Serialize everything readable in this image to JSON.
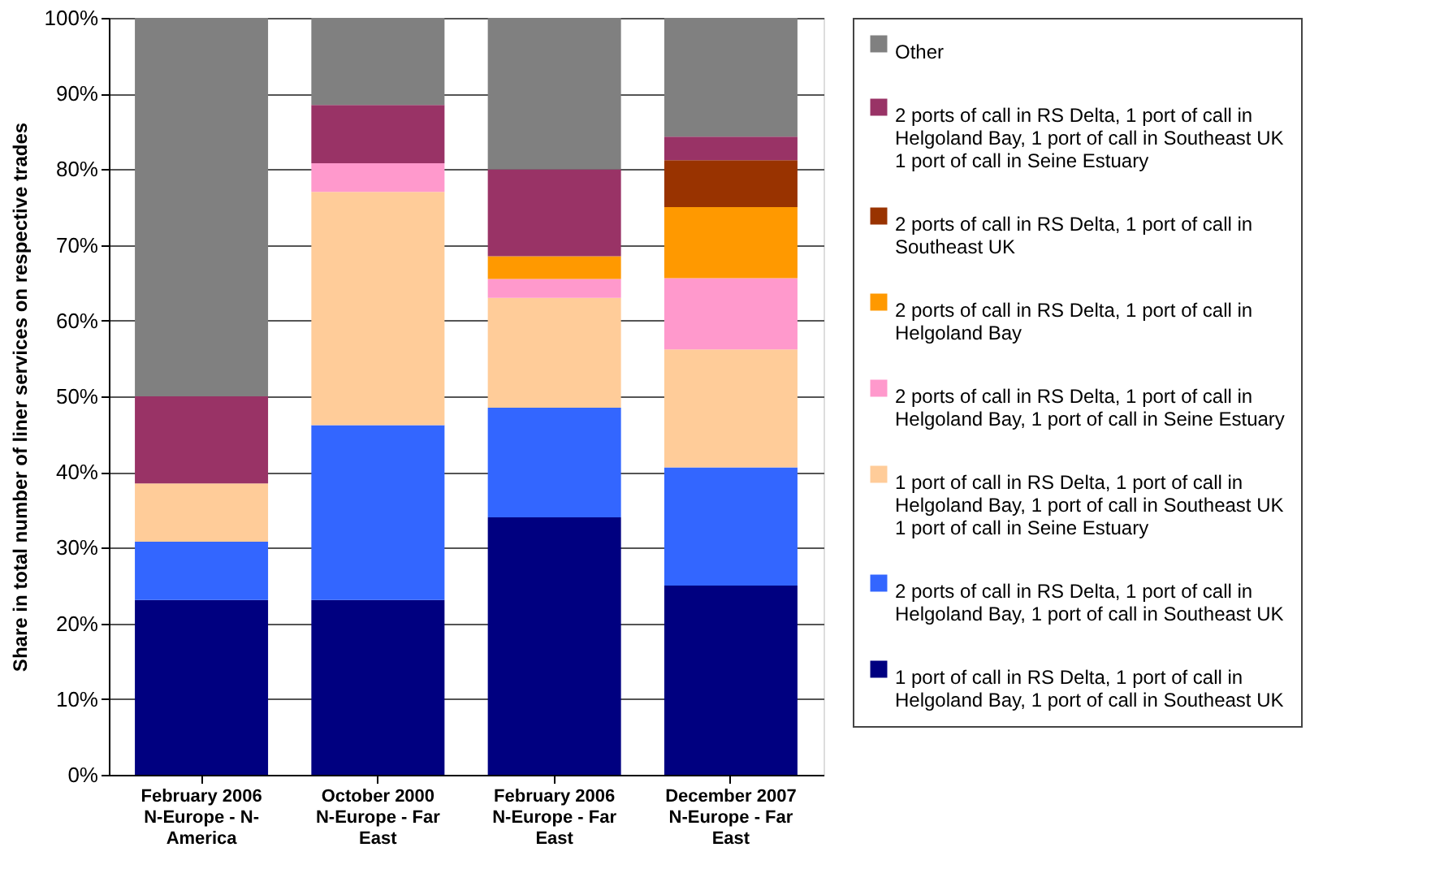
{
  "chart_data": {
    "type": "bar",
    "stacked": true,
    "ylabel": "Share in total number of liner services on respective trades",
    "categories": [
      "February 2006\nN-Europe - N-\nAmerica",
      "October 2000\nN-Europe - Far\nEast",
      "February 2006\nN-Europe - Far\nEast",
      "December 2007\nN-Europe - Far\nEast"
    ],
    "series": [
      {
        "name": "1 port of call in RS Delta, 1 port of call in\nHelgoland Bay, 1 port of call in Southeast UK",
        "color": "#000080",
        "values": [
          23.1,
          23.1,
          34,
          25
        ]
      },
      {
        "name": "2 ports of call in RS Delta, 1 port of call in\nHelgoland Bay, 1 port of call in Southeast UK",
        "color": "#3366ff",
        "values": [
          7.7,
          23.1,
          14.5,
          15.6
        ]
      },
      {
        "name": "1 port of call in RS Delta, 1 port of call in\nHelgoland Bay, 1 port of call in Southeast UK\n1 port of call in Seine Estuary",
        "color": "#ffcc99",
        "values": [
          7.7,
          30.8,
          14.5,
          15.6
        ]
      },
      {
        "name": "2 ports of call in RS Delta, 1 port of call in\nHelgoland Bay, 1 port of call in Seine Estuary",
        "color": "#ff99cc",
        "values": [
          null,
          3.8,
          2.5,
          9.4
        ]
      },
      {
        "name": "2 ports of call in RS Delta, 1 port of call in\nHelgoland Bay",
        "color": "#ff9900",
        "values": [
          null,
          null,
          3,
          9.4
        ]
      },
      {
        "name": "2 ports of call in RS Delta, 1 port of call in\nSoutheast UK",
        "color": "#993300",
        "values": [
          null,
          null,
          null,
          6.2
        ]
      },
      {
        "name": "2 ports of call in RS Delta, 1 port of call in\nHelgoland Bay, 1 port of call in Southeast UK\n1 port of call in Seine Estuary",
        "color": "#993366",
        "values": [
          11.5,
          7.7,
          11.5,
          3.1
        ]
      },
      {
        "name": "Other",
        "color": "#808080",
        "values": [
          50,
          11.5,
          20,
          15.7
        ]
      }
    ],
    "ylim": [
      0,
      100
    ],
    "yticks": [
      {
        "value": 0,
        "label": "0%"
      },
      {
        "value": 10,
        "label": "10%"
      },
      {
        "value": 20,
        "label": "20%"
      },
      {
        "value": 30,
        "label": "30%"
      },
      {
        "value": 40,
        "label": "40%"
      },
      {
        "value": 50,
        "label": "50%"
      },
      {
        "value": 60,
        "label": "60%"
      },
      {
        "value": 70,
        "label": "70%"
      },
      {
        "value": 80,
        "label": "80%"
      },
      {
        "value": 90,
        "label": "90%"
      },
      {
        "value": 100,
        "label": "100%"
      }
    ],
    "grid": "y",
    "legend": "right"
  }
}
